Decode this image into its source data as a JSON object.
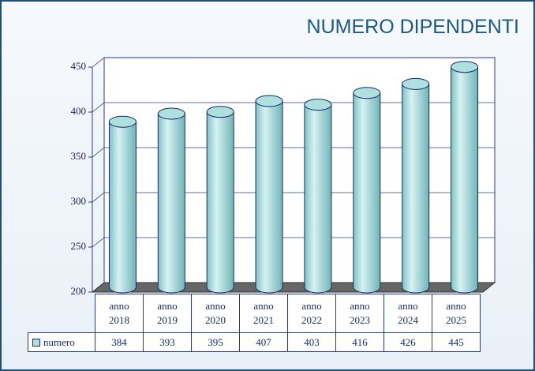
{
  "chart_data": {
    "type": "bar",
    "title": "NUMERO DIPENDENTI",
    "categories": [
      "anno 2018",
      "anno 2019",
      "anno 2020",
      "anno 2021",
      "anno 2022",
      "anno 2023",
      "anno 2024",
      "anno 2025"
    ],
    "series": [
      {
        "name": "numero",
        "color": "#aee0e0",
        "values": [
          384,
          393,
          395,
          407,
          403,
          416,
          426,
          445
        ]
      }
    ],
    "ylim": [
      200,
      450
    ],
    "yticks": [
      200,
      250,
      300,
      350,
      400,
      450
    ],
    "grid": true
  }
}
